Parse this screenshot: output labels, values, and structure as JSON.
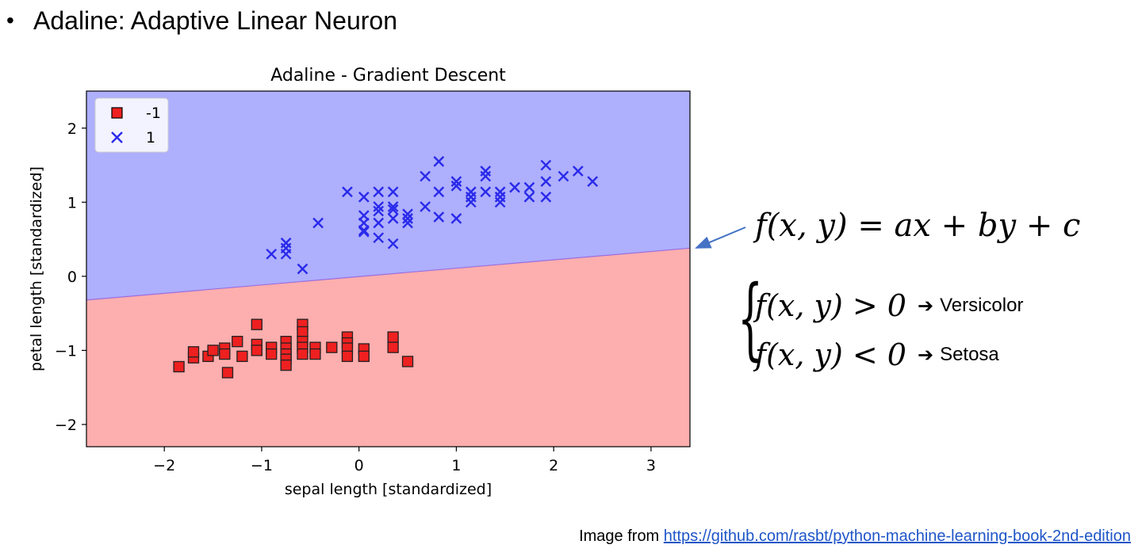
{
  "slide": {
    "bullet": "•",
    "title": "Adaline: Adaptive Linear Neuron"
  },
  "equation": {
    "main": "f(x, y) = ax + by + c",
    "conditions": [
      {
        "expr": "f(x, y) > 0",
        "arrow": "➔",
        "class_label": "Versicolor"
      },
      {
        "expr": "f(x, y) < 0",
        "arrow": "➔",
        "class_label": "Setosa"
      }
    ]
  },
  "credit": {
    "prefix": "Image from ",
    "link_text": "https://github.com/rasbt/python-machine-learning-book-2nd-edition"
  },
  "chart_data": {
    "type": "scatter",
    "title": "Adaline - Gradient Descent",
    "xlabel": "sepal length [standardized]",
    "ylabel": "petal length [standardized]",
    "xlim": [
      -2.8,
      3.4
    ],
    "ylim": [
      -2.3,
      2.5
    ],
    "xticks": [
      -2,
      -1,
      0,
      1,
      2,
      3
    ],
    "yticks": [
      -2,
      -1,
      0,
      1,
      2
    ],
    "xtick_labels": [
      "−2",
      "−1",
      "0",
      "1",
      "2",
      "3"
    ],
    "ytick_labels": [
      "−2",
      "−1",
      "0",
      "1",
      "2"
    ],
    "grid": false,
    "legend_position": "top-left",
    "decision_boundary": {
      "x": [
        -2.8,
        3.4
      ],
      "y": [
        -0.32,
        0.38
      ]
    },
    "region_colors": {
      "positive": "#aeaffd",
      "negative": "#fdaeae"
    },
    "series": [
      {
        "name": "-1",
        "marker": "square",
        "color": "#ee2020",
        "points": [
          [
            -1.85,
            -1.22
          ],
          [
            -1.7,
            -1.1
          ],
          [
            -1.7,
            -1.02
          ],
          [
            -1.55,
            -1.08
          ],
          [
            -1.5,
            -1.0
          ],
          [
            -1.38,
            -0.97
          ],
          [
            -1.38,
            -1.05
          ],
          [
            -1.35,
            -1.3
          ],
          [
            -1.25,
            -0.88
          ],
          [
            -1.2,
            -1.08
          ],
          [
            -1.05,
            -0.92
          ],
          [
            -1.05,
            -0.65
          ],
          [
            -1.05,
            -1.0
          ],
          [
            -0.9,
            -0.96
          ],
          [
            -0.9,
            -1.05
          ],
          [
            -0.75,
            -0.88
          ],
          [
            -0.75,
            -0.97
          ],
          [
            -0.75,
            -1.05
          ],
          [
            -0.75,
            -1.12
          ],
          [
            -0.75,
            -1.2
          ],
          [
            -0.58,
            -0.65
          ],
          [
            -0.58,
            -0.75
          ],
          [
            -0.58,
            -0.88
          ],
          [
            -0.58,
            -0.96
          ],
          [
            -0.58,
            -1.05
          ],
          [
            -0.45,
            -0.96
          ],
          [
            -0.45,
            -1.05
          ],
          [
            -0.28,
            -0.96
          ],
          [
            -0.12,
            -0.82
          ],
          [
            -0.12,
            -0.9
          ],
          [
            -0.12,
            -0.97
          ],
          [
            -0.12,
            -1.08
          ],
          [
            0.05,
            -0.98
          ],
          [
            0.05,
            -1.08
          ],
          [
            0.35,
            -0.82
          ],
          [
            0.35,
            -0.96
          ],
          [
            0.5,
            -1.15
          ]
        ]
      },
      {
        "name": "1",
        "marker": "x",
        "color": "#2a2aea",
        "points": [
          [
            -0.9,
            0.3
          ],
          [
            -0.75,
            0.3
          ],
          [
            -0.75,
            0.38
          ],
          [
            -0.75,
            0.45
          ],
          [
            -0.58,
            0.1
          ],
          [
            -0.42,
            0.72
          ],
          [
            -0.12,
            1.14
          ],
          [
            0.05,
            1.07
          ],
          [
            0.05,
            0.82
          ],
          [
            0.05,
            0.72
          ],
          [
            0.05,
            0.62
          ],
          [
            0.05,
            0.6
          ],
          [
            0.2,
            1.14
          ],
          [
            0.2,
            0.94
          ],
          [
            0.2,
            0.88
          ],
          [
            0.2,
            0.72
          ],
          [
            0.2,
            0.52
          ],
          [
            0.35,
            1.14
          ],
          [
            0.35,
            0.94
          ],
          [
            0.35,
            0.9
          ],
          [
            0.35,
            0.78
          ],
          [
            0.35,
            0.44
          ],
          [
            0.5,
            0.84
          ],
          [
            0.5,
            0.78
          ],
          [
            0.5,
            0.72
          ],
          [
            0.68,
            1.35
          ],
          [
            0.68,
            0.94
          ],
          [
            0.82,
            1.55
          ],
          [
            0.82,
            1.14
          ],
          [
            0.82,
            0.8
          ],
          [
            1.0,
            1.28
          ],
          [
            1.0,
            1.22
          ],
          [
            1.0,
            0.78
          ],
          [
            1.15,
            1.14
          ],
          [
            1.15,
            1.07
          ],
          [
            1.15,
            1.0
          ],
          [
            1.3,
            1.42
          ],
          [
            1.3,
            1.35
          ],
          [
            1.3,
            1.14
          ],
          [
            1.45,
            1.14
          ],
          [
            1.45,
            1.07
          ],
          [
            1.45,
            1.0
          ],
          [
            1.6,
            1.2
          ],
          [
            1.75,
            1.2
          ],
          [
            1.75,
            1.07
          ],
          [
            1.92,
            1.5
          ],
          [
            1.92,
            1.28
          ],
          [
            1.92,
            1.07
          ],
          [
            2.1,
            1.35
          ],
          [
            2.25,
            1.42
          ],
          [
            2.4,
            1.28
          ]
        ]
      }
    ]
  }
}
